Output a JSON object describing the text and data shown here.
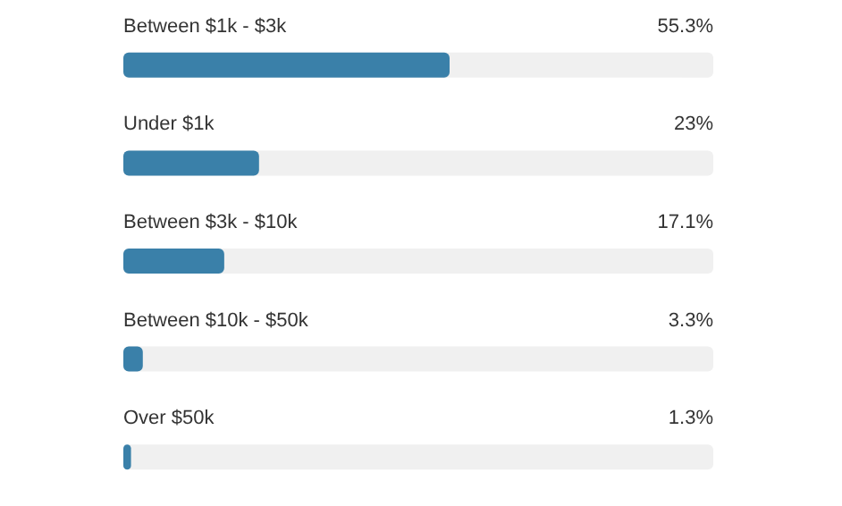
{
  "chart_data": {
    "type": "bar",
    "orientation": "horizontal",
    "categories": [
      "Between $1k - $3k",
      "Under $1k",
      "Between $3k - $10k",
      "Between $10k - $50k",
      "Over $50k"
    ],
    "values": [
      55.3,
      23,
      17.1,
      3.3,
      1.3
    ],
    "value_labels": [
      "55.3%",
      "23%",
      "17.1%",
      "3.3%",
      "1.3%"
    ],
    "color": "#3a80a9",
    "xlim": [
      0,
      100
    ]
  }
}
